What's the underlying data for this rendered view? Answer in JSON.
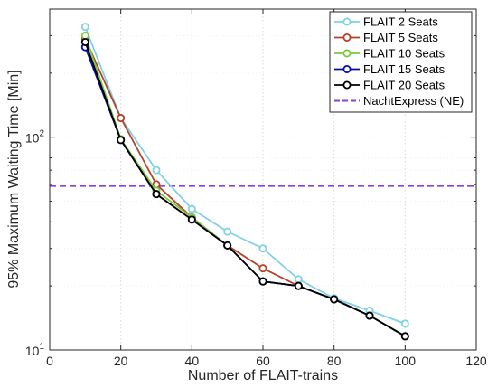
{
  "chart_data": {
    "type": "line",
    "title": "",
    "xlabel": "Number of FLAIT-trains",
    "ylabel": "95% Maximum Waiting Time [Min]",
    "xlim": [
      0,
      120
    ],
    "ylim": [
      10,
      400
    ],
    "yscale": "log",
    "xticks": [
      0,
      20,
      40,
      60,
      80,
      100,
      120
    ],
    "yticks": [
      {
        "value": 10,
        "base": "10",
        "exp": "1"
      },
      {
        "value": 100,
        "base": "10",
        "exp": "2"
      }
    ],
    "grid": true,
    "legend_position": "top-right",
    "series": [
      {
        "name": "FLAIT 2 Seats",
        "color": "#7fd1e6",
        "x": [
          10,
          20,
          30,
          40,
          50,
          60,
          70,
          80,
          90,
          100
        ],
        "y": [
          330,
          123,
          70,
          46,
          36,
          30,
          21.5,
          17.5,
          15.3,
          13.3
        ]
      },
      {
        "name": "FLAIT 5 Seats",
        "color": "#b5432b",
        "x": [
          10,
          20,
          30,
          40,
          50,
          60,
          70,
          80,
          90,
          100
        ],
        "y": [
          290,
          123,
          60,
          42,
          31,
          24.2,
          20,
          17.3,
          14.5,
          11.6
        ]
      },
      {
        "name": "FLAIT 10 Seats",
        "color": "#7cc93a",
        "x": [
          10,
          20,
          30,
          40,
          50,
          60,
          70,
          80,
          90,
          100
        ],
        "y": [
          300,
          98,
          56,
          42,
          31,
          21,
          20,
          17.3,
          14.5,
          11.6
        ]
      },
      {
        "name": "FLAIT 15 Seats",
        "color": "#0a0aa8",
        "x": [
          10,
          20,
          30,
          40,
          50,
          60,
          70,
          80,
          90,
          100
        ],
        "y": [
          265,
          97,
          54,
          41,
          31,
          21,
          20,
          17.3,
          14.5,
          11.6
        ]
      },
      {
        "name": "FLAIT 20 Seats",
        "color": "#000000",
        "x": [
          10,
          20,
          30,
          40,
          50,
          60,
          70,
          80,
          90,
          100
        ],
        "y": [
          280,
          97,
          54,
          41,
          31,
          21,
          20,
          17.3,
          14.5,
          11.6
        ]
      }
    ],
    "reference_line": {
      "name": "NachtExpress (NE)",
      "color": "#8a3fe0",
      "y": 59
    }
  }
}
